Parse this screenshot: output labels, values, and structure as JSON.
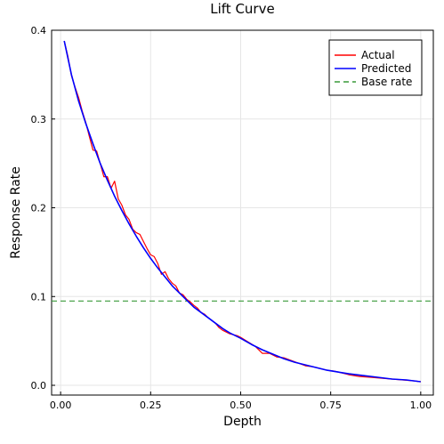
{
  "chart_data": {
    "type": "line",
    "title": "Lift Curve",
    "xlabel": "Depth",
    "ylabel": "Response Rate",
    "xlim": [
      -0.025,
      1.035
    ],
    "ylim": [
      -0.011,
      0.4
    ],
    "xticks": [
      0.0,
      0.25,
      0.5,
      0.75,
      1.0
    ],
    "xtick_labels": [
      "0.00",
      "0.25",
      "0.50",
      "0.75",
      "1.00"
    ],
    "yticks": [
      0.0,
      0.1,
      0.2,
      0.3,
      0.4
    ],
    "ytick_labels": [
      "0.0",
      "0.1",
      "0.2",
      "0.3",
      "0.4"
    ],
    "grid": true,
    "legend_position": "top-right",
    "series": [
      {
        "name": "Actual",
        "color": "#ff0000",
        "style": "solid",
        "x": [
          0.01,
          0.02,
          0.03,
          0.04,
          0.05,
          0.06,
          0.07,
          0.08,
          0.09,
          0.1,
          0.11,
          0.12,
          0.13,
          0.14,
          0.15,
          0.16,
          0.17,
          0.18,
          0.19,
          0.2,
          0.21,
          0.22,
          0.23,
          0.24,
          0.25,
          0.26,
          0.27,
          0.28,
          0.29,
          0.3,
          0.31,
          0.32,
          0.33,
          0.34,
          0.35,
          0.36,
          0.37,
          0.38,
          0.39,
          0.4,
          0.41,
          0.42,
          0.43,
          0.44,
          0.45,
          0.46,
          0.47,
          0.48,
          0.49,
          0.5,
          0.52,
          0.54,
          0.56,
          0.58,
          0.6,
          0.62,
          0.64,
          0.66,
          0.68,
          0.7,
          0.72,
          0.74,
          0.76,
          0.78,
          0.8,
          0.83,
          0.86,
          0.89,
          0.92,
          0.95,
          0.98,
          1.0
        ],
        "y": [
          0.388,
          0.371,
          0.349,
          0.336,
          0.324,
          0.309,
          0.296,
          0.28,
          0.265,
          0.264,
          0.25,
          0.235,
          0.235,
          0.222,
          0.23,
          0.21,
          0.203,
          0.192,
          0.187,
          0.176,
          0.172,
          0.17,
          0.162,
          0.154,
          0.147,
          0.145,
          0.137,
          0.125,
          0.128,
          0.12,
          0.115,
          0.112,
          0.104,
          0.102,
          0.097,
          0.094,
          0.09,
          0.087,
          0.082,
          0.08,
          0.076,
          0.073,
          0.07,
          0.065,
          0.062,
          0.06,
          0.058,
          0.057,
          0.056,
          0.054,
          0.049,
          0.044,
          0.036,
          0.036,
          0.032,
          0.031,
          0.028,
          0.025,
          0.022,
          0.021,
          0.019,
          0.017,
          0.016,
          0.014,
          0.012,
          0.01,
          0.009,
          0.008,
          0.007,
          0.006,
          0.005,
          0.004
        ]
      },
      {
        "name": "Predicted",
        "color": "#0000ff",
        "style": "solid",
        "x": [
          0.01,
          0.03,
          0.05,
          0.07,
          0.09,
          0.11,
          0.13,
          0.15,
          0.17,
          0.19,
          0.21,
          0.23,
          0.25,
          0.27,
          0.29,
          0.31,
          0.33,
          0.35,
          0.37,
          0.39,
          0.41,
          0.43,
          0.45,
          0.47,
          0.5,
          0.53,
          0.56,
          0.59,
          0.62,
          0.65,
          0.68,
          0.71,
          0.74,
          0.77,
          0.8,
          0.84,
          0.88,
          0.92,
          0.96,
          1.0
        ],
        "y": [
          0.388,
          0.35,
          0.32,
          0.295,
          0.272,
          0.25,
          0.231,
          0.213,
          0.197,
          0.182,
          0.168,
          0.155,
          0.143,
          0.132,
          0.122,
          0.112,
          0.104,
          0.096,
          0.088,
          0.082,
          0.076,
          0.07,
          0.064,
          0.059,
          0.053,
          0.046,
          0.04,
          0.035,
          0.03,
          0.026,
          0.023,
          0.02,
          0.017,
          0.015,
          0.013,
          0.011,
          0.009,
          0.007,
          0.006,
          0.004
        ]
      },
      {
        "name": "Base rate",
        "color": "#3a9a3a",
        "style": "dashed",
        "x": [
          -0.025,
          1.035
        ],
        "y": [
          0.095,
          0.095
        ]
      }
    ]
  }
}
